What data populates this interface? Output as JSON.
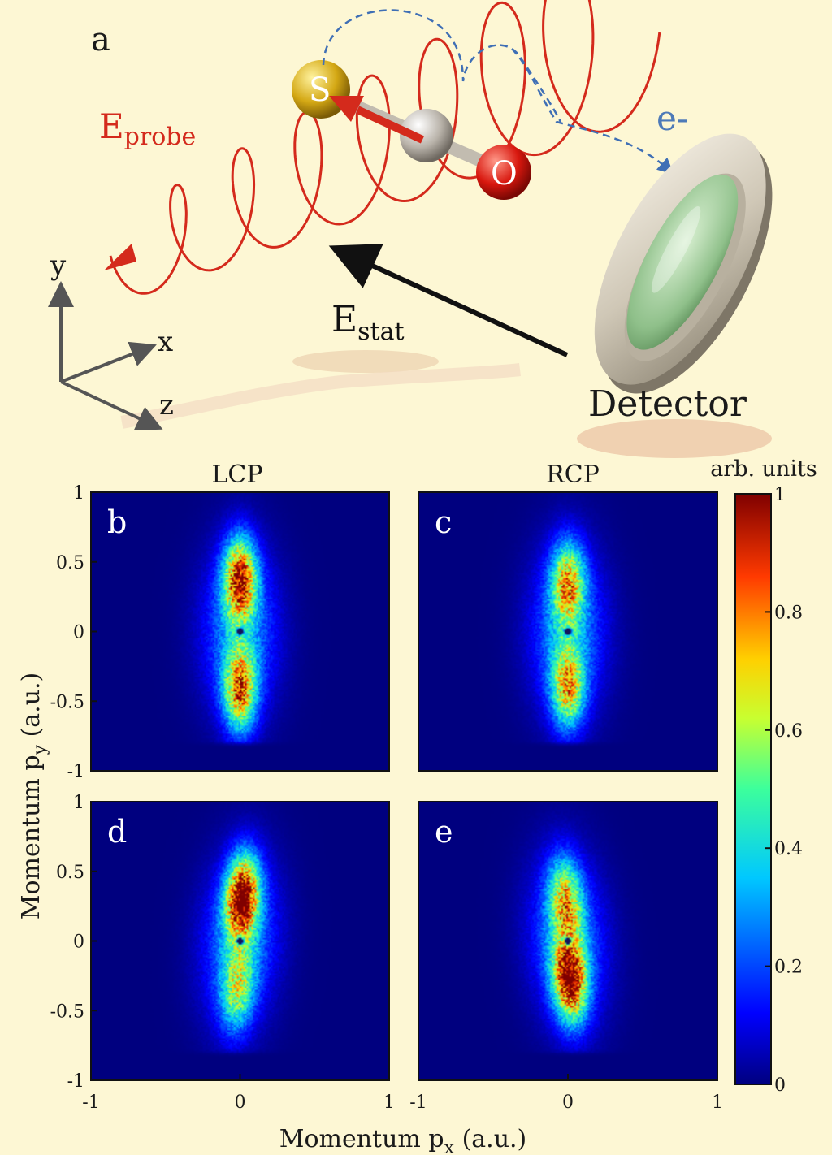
{
  "panel_a": {
    "letter": "a",
    "e_probe_main": "E",
    "e_probe_sub": "probe",
    "e_stat_main": "E",
    "e_stat_sub": "stat",
    "electron": "e-",
    "detector": "Detector",
    "atom_s": "S",
    "atom_o": "O",
    "axis_x": "x",
    "axis_y": "y",
    "axis_z": "z",
    "colors": {
      "probe": "#d42a1c",
      "stat": "#111111",
      "electron": "#3f6fb5"
    }
  },
  "chart_data": {
    "type": "heatmap",
    "column_titles": [
      "LCP",
      "RCP"
    ],
    "xlabel_main": "Momentum p",
    "xlabel_sub": "x",
    "xlabel_unit": " (a.u.)",
    "ylabel_main": "Momentum p",
    "ylabel_sub": "y",
    "ylabel_unit": " (a.u.)",
    "xlim": [
      -1,
      1
    ],
    "ylim": [
      -1,
      1
    ],
    "x_ticks": [
      "-1",
      "0",
      "1"
    ],
    "y_ticks": [
      "1",
      "0.5",
      "0",
      "-0.5",
      "-1"
    ],
    "colorbar": {
      "title": "arb. units",
      "ticks": [
        "1",
        "0.8",
        "0.6",
        "0.4",
        "0.2",
        "0"
      ],
      "range": [
        0,
        1
      ]
    },
    "panels": [
      {
        "letter": "b",
        "row": 0,
        "col": 0,
        "lobes": [
          {
            "py": 0.38,
            "amp": 0.82
          },
          {
            "py": -0.42,
            "amp": 0.72
          }
        ],
        "tilt": 0.0,
        "center_hole": [
          0,
          0
        ]
      },
      {
        "letter": "c",
        "row": 0,
        "col": 1,
        "lobes": [
          {
            "py": 0.35,
            "amp": 0.62
          },
          {
            "py": -0.4,
            "amp": 0.62
          }
        ],
        "tilt": 0.0,
        "center_hole": [
          0,
          0
        ]
      },
      {
        "letter": "d",
        "row": 1,
        "col": 0,
        "lobes": [
          {
            "py": 0.32,
            "amp": 0.95
          },
          {
            "py": -0.35,
            "amp": 0.45
          }
        ],
        "tilt": 0.05,
        "center_hole": [
          0,
          0
        ]
      },
      {
        "letter": "e",
        "row": 1,
        "col": 1,
        "lobes": [
          {
            "py": 0.3,
            "amp": 0.55
          },
          {
            "py": -0.28,
            "amp": 0.92
          }
        ],
        "tilt": -0.05,
        "center_hole": [
          0,
          0
        ]
      }
    ]
  }
}
